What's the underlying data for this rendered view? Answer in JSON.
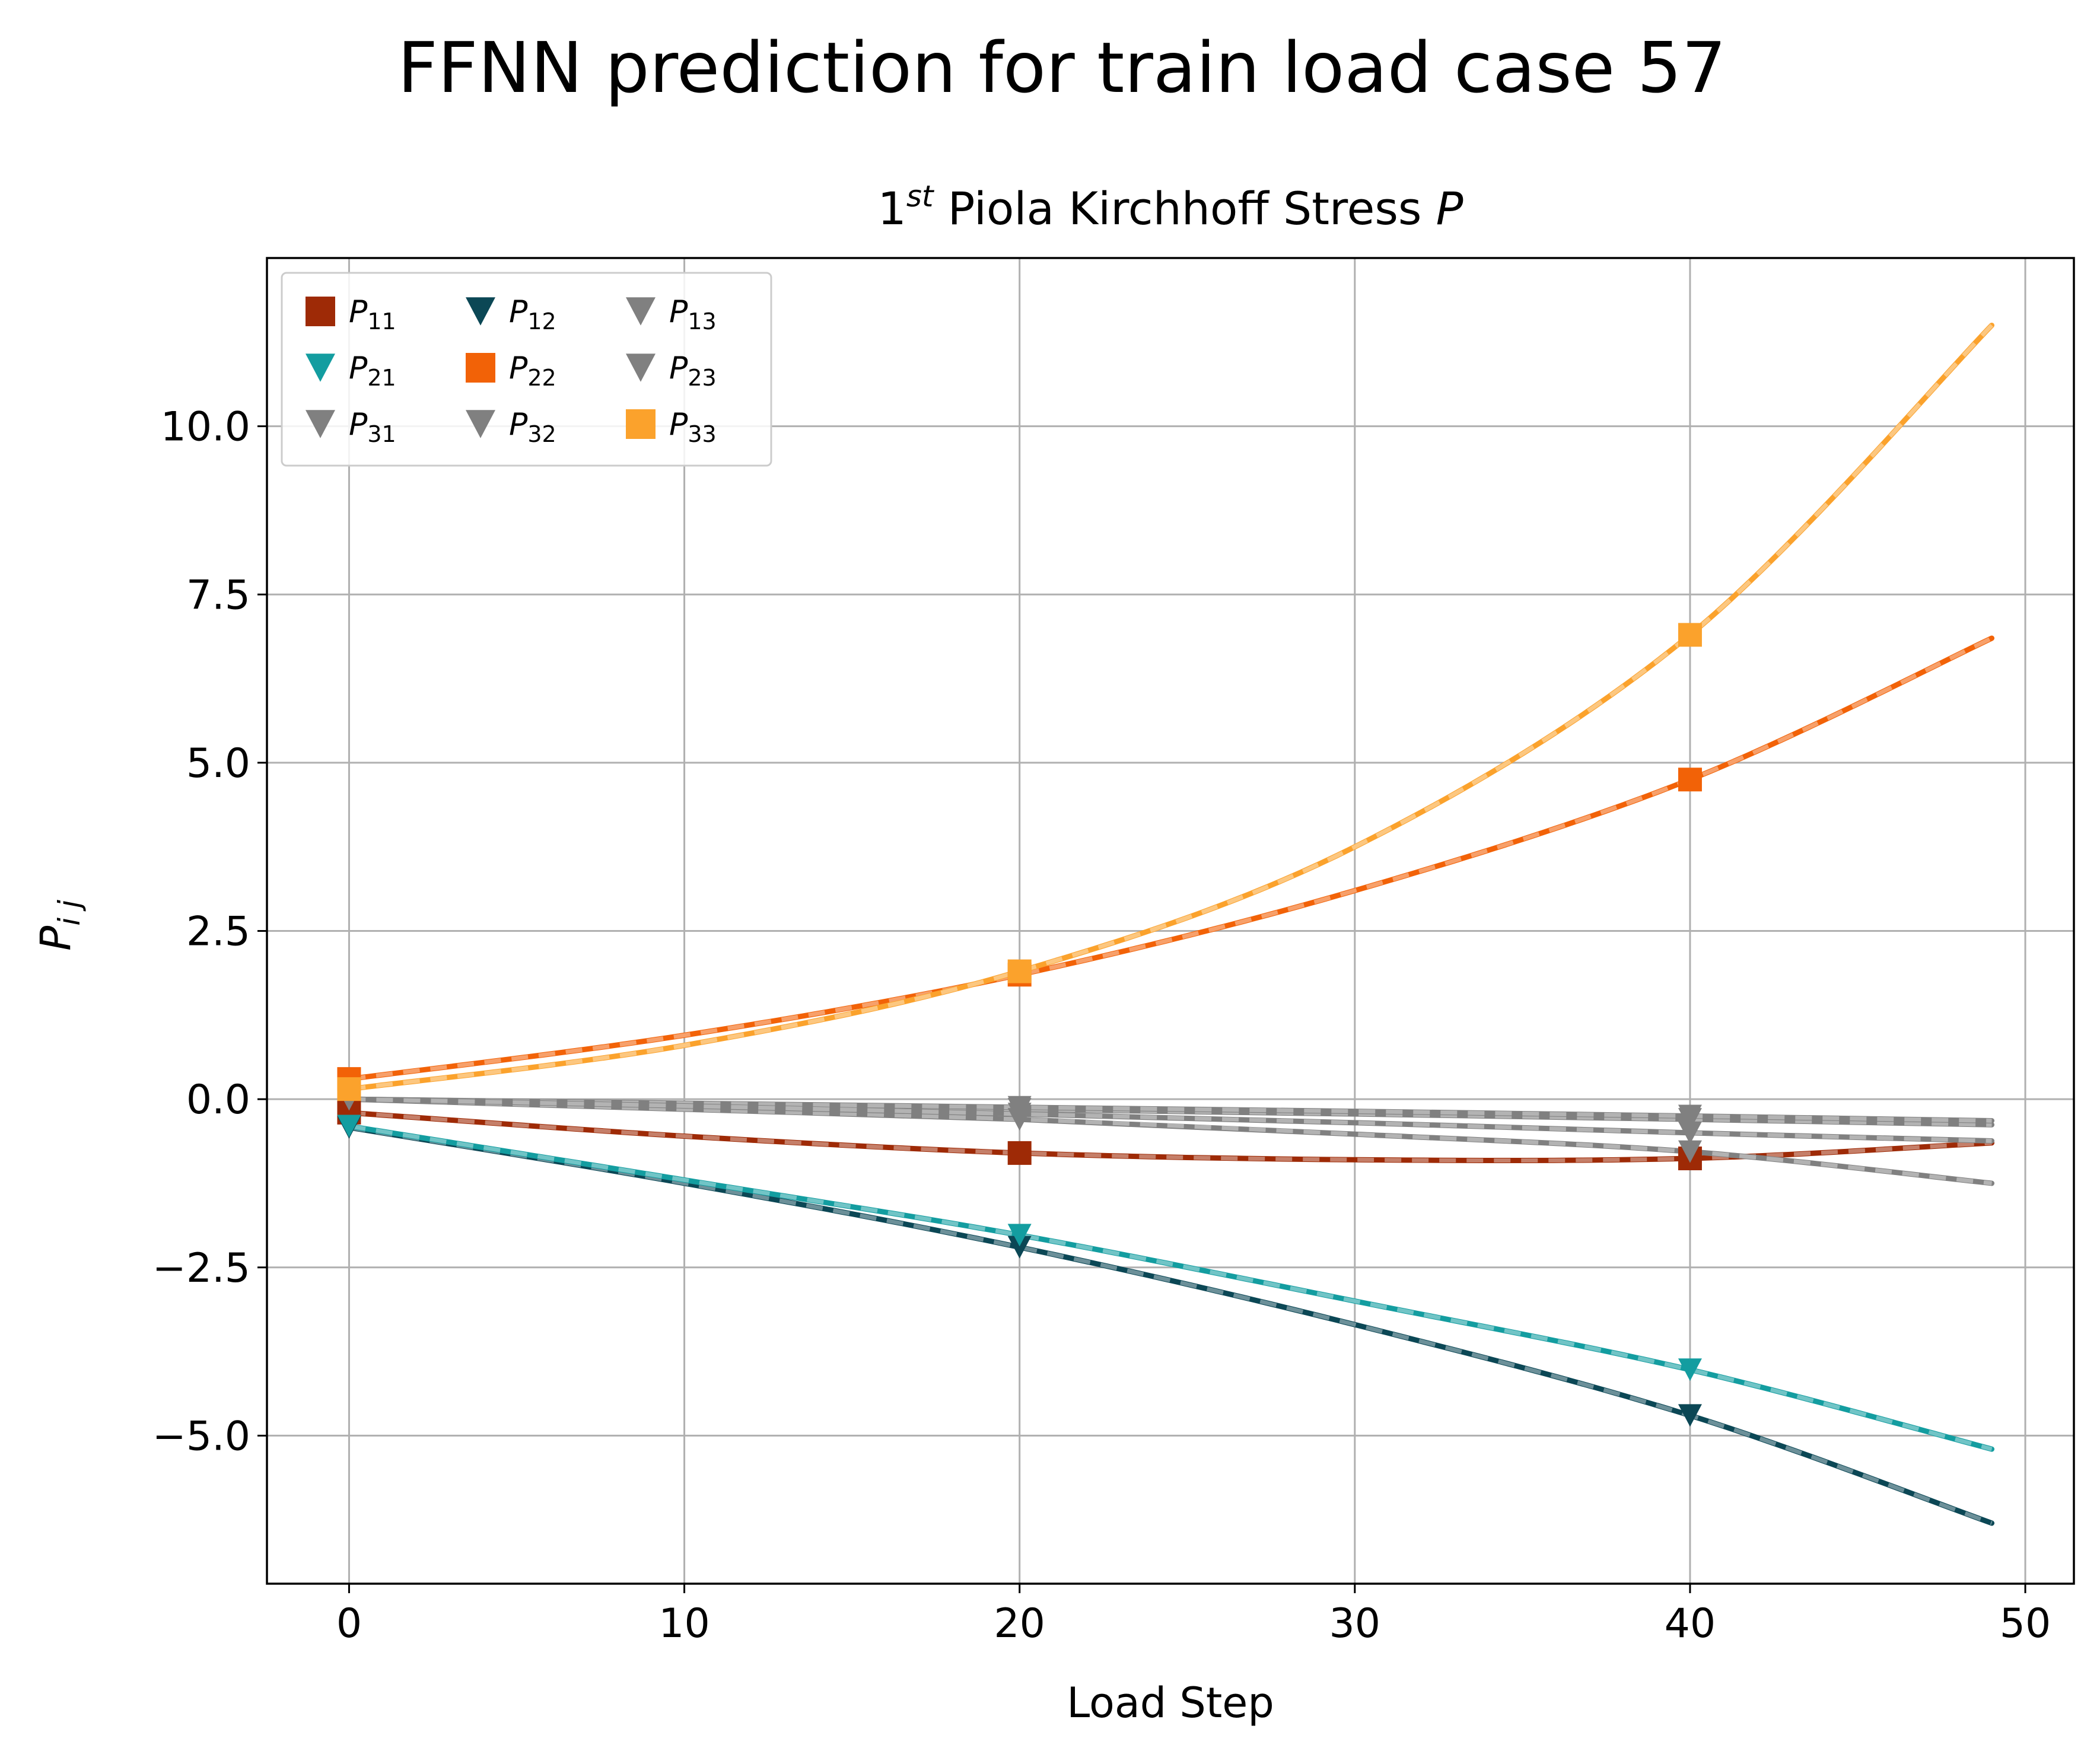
{
  "suptitle": "FFNN prediction for train load case 57",
  "chart_data": {
    "type": "line",
    "title": "1st Piola Kirchhoff Stress P",
    "title_parts": {
      "base": "1",
      "sup": "st",
      "rest": " Piola Kirchhoff Stress ",
      "italic": "P"
    },
    "xlabel": "Load Step",
    "ylabel": "P i j",
    "ylabel_parts": {
      "base": "P",
      "sub": "i j"
    },
    "xlim": [
      -2.45,
      51.45
    ],
    "ylim": [
      -7.2,
      12.5
    ],
    "xticks": [
      0,
      10,
      20,
      30,
      40,
      50
    ],
    "yticks": [
      -5.0,
      -2.5,
      0.0,
      2.5,
      5.0,
      7.5,
      10.0
    ],
    "xtick_labels": [
      "0",
      "10",
      "20",
      "30",
      "40",
      "50"
    ],
    "ytick_labels": [
      "−5.0",
      "−2.5",
      "0.0",
      "2.5",
      "5.0",
      "7.5",
      "10.0"
    ],
    "grid": true,
    "legend_position": "upper-left",
    "legend_columns": 3,
    "marker_steps": [
      0,
      20,
      40
    ],
    "series": [
      {
        "name": "P11",
        "sub": "11",
        "color": "#9e2a06",
        "marker": "square",
        "x": [
          0,
          10,
          20,
          30,
          40,
          49
        ],
        "y": [
          -0.2,
          -0.55,
          -0.8,
          -0.9,
          -0.88,
          -0.65
        ]
      },
      {
        "name": "P12",
        "sub": "12",
        "color": "#0b4755",
        "marker": "triangle-down",
        "x": [
          0,
          10,
          20,
          30,
          40,
          49
        ],
        "y": [
          -0.42,
          -1.25,
          -2.2,
          -3.35,
          -4.7,
          -6.3
        ]
      },
      {
        "name": "P13",
        "sub": "13",
        "color": "#808080",
        "marker": "triangle-down",
        "x": [
          0,
          10,
          20,
          30,
          40,
          49
        ],
        "y": [
          0.0,
          -0.07,
          -0.15,
          -0.22,
          -0.3,
          -0.38
        ]
      },
      {
        "name": "P21",
        "sub": "21",
        "color": "#139da0",
        "marker": "triangle-down",
        "x": [
          0,
          10,
          20,
          30,
          40,
          49
        ],
        "y": [
          -0.4,
          -1.2,
          -2.02,
          -3.0,
          -4.02,
          -5.2
        ]
      },
      {
        "name": "P22",
        "sub": "22",
        "color": "#f26207",
        "marker": "square",
        "x": [
          0,
          10,
          20,
          30,
          40,
          49
        ],
        "y": [
          0.3,
          0.95,
          1.85,
          3.1,
          4.75,
          6.85
        ]
      },
      {
        "name": "P23",
        "sub": "23",
        "color": "#808080",
        "marker": "triangle-down",
        "x": [
          0,
          10,
          20,
          30,
          40,
          49
        ],
        "y": [
          0.0,
          -0.06,
          -0.12,
          -0.18,
          -0.25,
          -0.32
        ]
      },
      {
        "name": "P31",
        "sub": "31",
        "color": "#808080",
        "marker": "triangle-down",
        "x": [
          0,
          10,
          20,
          30,
          40,
          49
        ],
        "y": [
          0.0,
          -0.15,
          -0.3,
          -0.52,
          -0.78,
          -1.25
        ]
      },
      {
        "name": "P32",
        "sub": "32",
        "color": "#808080",
        "marker": "triangle-down",
        "x": [
          0,
          10,
          20,
          30,
          40,
          49
        ],
        "y": [
          0.0,
          -0.1,
          -0.22,
          -0.35,
          -0.5,
          -0.62
        ]
      },
      {
        "name": "P33",
        "sub": "33",
        "color": "#fba22c",
        "marker": "square",
        "x": [
          0,
          10,
          20,
          30,
          40,
          49
        ],
        "y": [
          0.15,
          0.8,
          1.9,
          3.75,
          6.9,
          11.5
        ]
      }
    ],
    "legend_order": [
      "P11",
      "P12",
      "P13",
      "P21",
      "P22",
      "P23",
      "P31",
      "P32",
      "P33"
    ]
  }
}
